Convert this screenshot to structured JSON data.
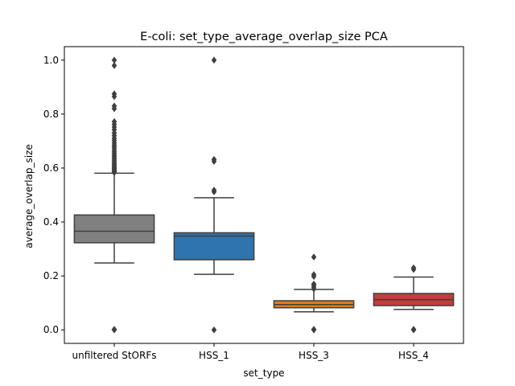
{
  "chart_data": {
    "type": "box",
    "title": "E-coli: set_type_average_overlap_size PCA",
    "xlabel": "set_type",
    "ylabel": "average_overlap_size",
    "ylim": [
      -0.05,
      1.05
    ],
    "yticks": [
      0.0,
      0.2,
      0.4,
      0.6,
      0.8,
      1.0
    ],
    "ytick_labels": [
      "0.0",
      "0.2",
      "0.4",
      "0.6",
      "0.8",
      "1.0"
    ],
    "grid": false,
    "categories": [
      "unfiltered StORFs",
      "HSS_1",
      "HSS_3",
      "HSS_4"
    ],
    "boxes": [
      {
        "name": "unfiltered StORFs",
        "color": "#808080",
        "whisker_low": 0.248,
        "q1": 0.323,
        "median": 0.366,
        "q3": 0.426,
        "whisker_high": 0.581,
        "outliers": [
          0.0,
          0.001,
          0.002,
          0.583,
          0.587,
          0.59,
          0.594,
          0.598,
          0.602,
          0.607,
          0.612,
          0.617,
          0.623,
          0.629,
          0.635,
          0.642,
          0.648,
          0.655,
          0.662,
          0.67,
          0.678,
          0.685,
          0.693,
          0.702,
          0.71,
          0.72,
          0.73,
          0.742,
          0.752,
          0.762,
          0.772,
          0.82,
          0.83,
          0.865,
          0.875,
          0.98,
          1.0
        ]
      },
      {
        "name": "HSS_1",
        "color": "#2f74ac",
        "whisker_low": 0.206,
        "q1": 0.26,
        "median": 0.348,
        "q3": 0.36,
        "whisker_high": 0.49,
        "outliers": [
          0.0,
          0.512,
          0.518,
          0.625,
          0.632,
          1.0
        ]
      },
      {
        "name": "HSS_3",
        "color": "#e07b22",
        "whisker_low": 0.067,
        "q1": 0.082,
        "median": 0.094,
        "q3": 0.108,
        "whisker_high": 0.15,
        "outliers": [
          0.0,
          0.002,
          0.152,
          0.158,
          0.165,
          0.17,
          0.198,
          0.205,
          0.27
        ]
      },
      {
        "name": "HSS_4",
        "color": "#c33e3a",
        "whisker_low": 0.076,
        "q1": 0.09,
        "median": 0.112,
        "q3": 0.135,
        "whisker_high": 0.196,
        "outliers": [
          0.0,
          0.002,
          0.224,
          0.23
        ]
      }
    ]
  }
}
